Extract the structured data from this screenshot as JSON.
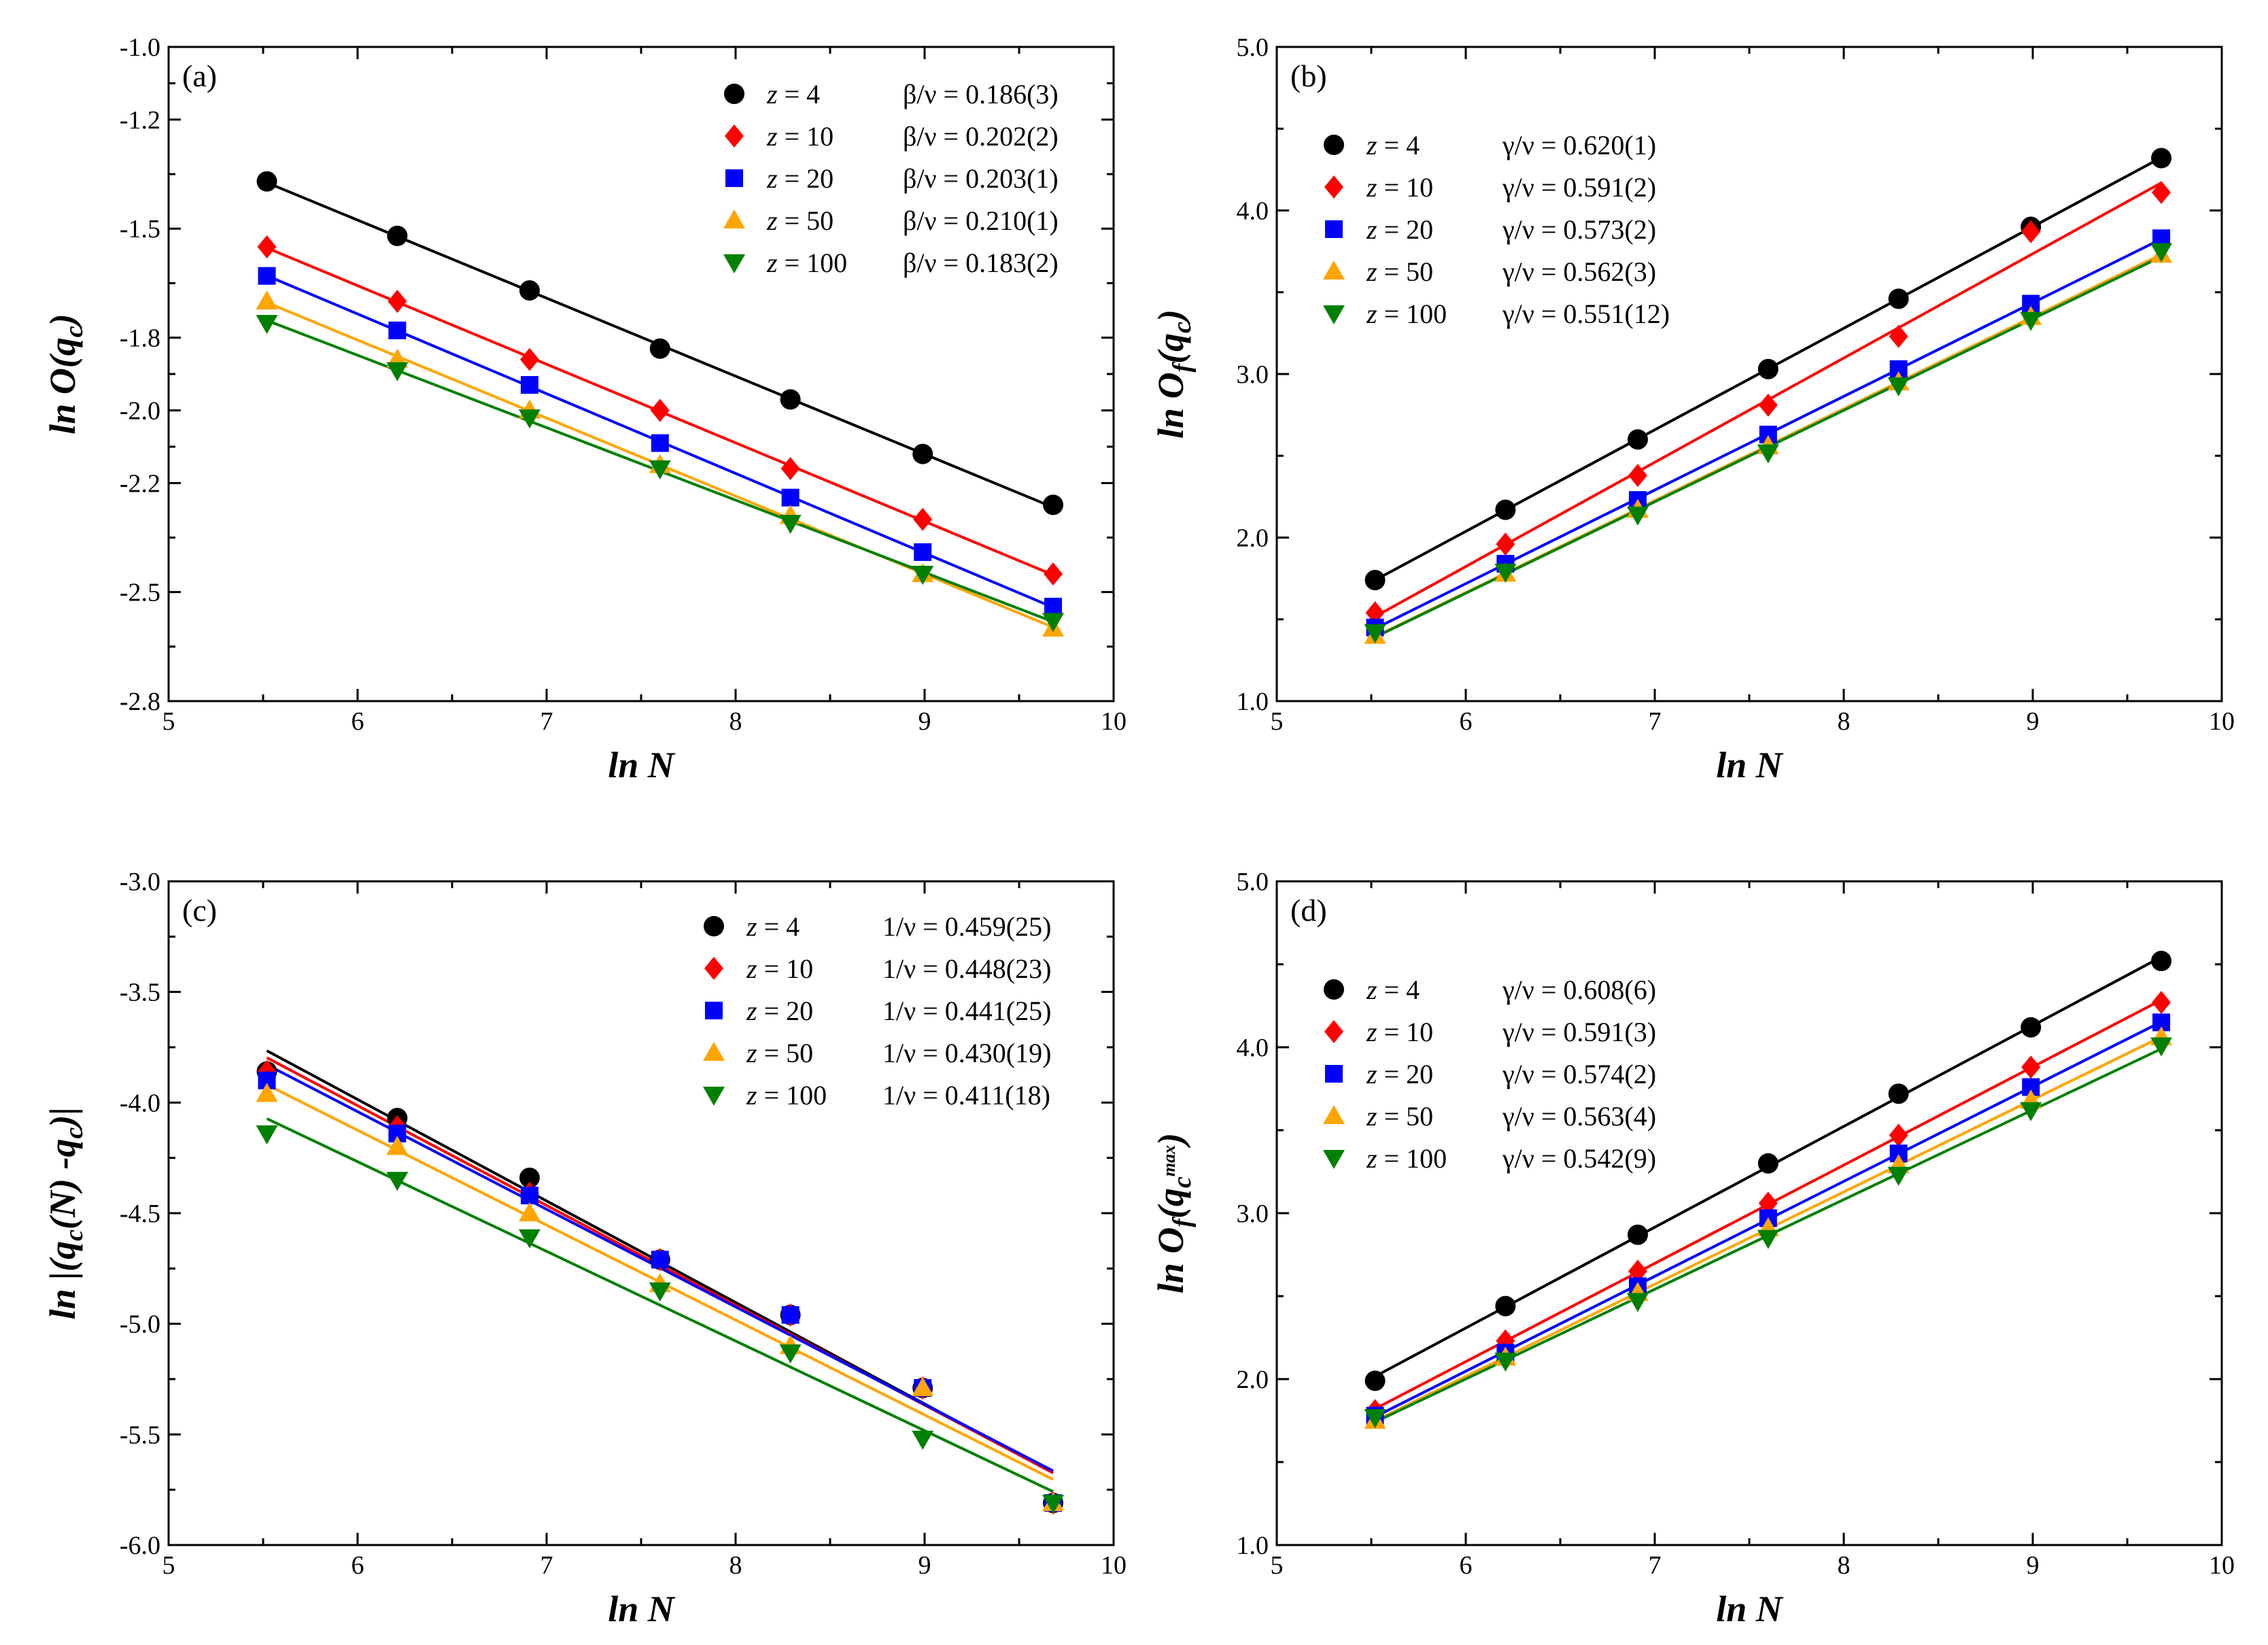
{
  "chart_data": [
    {
      "type": "scatter",
      "panel": "(a)",
      "xlabel": "ln N",
      "ylabel_parts": [
        {
          "t": "ln O(q"
        },
        {
          "t": "c",
          "sub": true
        },
        {
          "t": ")"
        }
      ],
      "xlim": [
        5,
        10
      ],
      "ylim": [
        -2.8,
        -1.0
      ],
      "xticks": [
        5,
        6,
        7,
        8,
        9,
        10
      ],
      "yticks": [
        -2.8,
        -2.5,
        -2.2,
        -2.0,
        -1.8,
        -1.5,
        -1.2,
        -1.0
      ],
      "ytick_labels": [
        "-2.8",
        "-2.5",
        "-2.2",
        "-2.0",
        "-1.8",
        "-1.5",
        "-1.2",
        "-1.0"
      ],
      "x": [
        5.52,
        6.21,
        6.91,
        7.6,
        8.29,
        8.99,
        9.68
      ],
      "series": [
        {
          "z": "4",
          "exponent": "β/ν = 0.186(3)",
          "values": [
            -1.37,
            -1.52,
            -1.67,
            -1.83,
            -1.97,
            -2.12,
            -2.26
          ]
        },
        {
          "z": "10",
          "exponent": "β/ν = 0.202(2)",
          "values": [
            -1.55,
            -1.7,
            -1.86,
            -2.0,
            -2.16,
            -2.3,
            -2.45
          ]
        },
        {
          "z": "20",
          "exponent": "β/ν = 0.203(1)",
          "values": [
            -1.63,
            -1.78,
            -1.93,
            -2.09,
            -2.24,
            -2.39,
            -2.54
          ]
        },
        {
          "z": "50",
          "exponent": "β/ν = 0.210(1)",
          "values": [
            -1.7,
            -1.86,
            -2.0,
            -2.15,
            -2.29,
            -2.45,
            -2.6
          ]
        },
        {
          "z": "100",
          "exponent": "β/ν = 0.183(2)",
          "values": [
            -1.76,
            -1.89,
            -2.02,
            -2.16,
            -2.31,
            -2.45,
            -2.58
          ]
        }
      ]
    },
    {
      "type": "scatter",
      "panel": "(b)",
      "xlabel": "ln N",
      "ylabel_parts": [
        {
          "t": "ln O"
        },
        {
          "t": "f",
          "sub": true
        },
        {
          "t": "(q"
        },
        {
          "t": "c",
          "sub": true
        },
        {
          "t": ")"
        }
      ],
      "xlim": [
        5,
        10
      ],
      "ylim": [
        1.0,
        5.0
      ],
      "xticks": [
        5,
        6,
        7,
        8,
        9,
        10
      ],
      "yticks": [
        1.0,
        2.0,
        3.0,
        4.0,
        5.0
      ],
      "ytick_labels": [
        "1.0",
        "2.0",
        "3.0",
        "4.0",
        "5.0"
      ],
      "x": [
        5.52,
        6.21,
        6.91,
        7.6,
        8.29,
        8.99,
        9.68
      ],
      "series": [
        {
          "z": "4",
          "exponent": "γ/ν = 0.620(1)",
          "values": [
            1.74,
            2.17,
            2.6,
            3.03,
            3.46,
            3.9,
            4.32
          ]
        },
        {
          "z": "10",
          "exponent": "γ/ν = 0.591(2)",
          "values": [
            1.54,
            1.96,
            2.38,
            2.81,
            3.23,
            3.87,
            4.11
          ]
        },
        {
          "z": "20",
          "exponent": "γ/ν = 0.573(2)",
          "values": [
            1.45,
            1.84,
            2.23,
            2.63,
            3.03,
            3.43,
            3.83
          ]
        },
        {
          "z": "50",
          "exponent": "γ/ν = 0.562(3)",
          "values": [
            1.4,
            1.78,
            2.17,
            2.56,
            2.95,
            3.35,
            3.73
          ]
        },
        {
          "z": "100",
          "exponent": "γ/ν = 0.551(12)",
          "values": [
            1.42,
            1.79,
            2.14,
            2.52,
            2.93,
            3.33,
            3.75
          ]
        }
      ]
    },
    {
      "type": "scatter",
      "panel": "(c)",
      "xlabel": "ln N",
      "ylabel_parts": [
        {
          "t": "ln |(q"
        },
        {
          "t": "c",
          "sub": true
        },
        {
          "t": "(N) -q"
        },
        {
          "t": "c",
          "sub": true
        },
        {
          "t": ")|"
        }
      ],
      "xlim": [
        5,
        10
      ],
      "ylim": [
        -6.0,
        -3.0
      ],
      "xticks": [
        5,
        6,
        7,
        8,
        9,
        10
      ],
      "yticks": [
        -6.0,
        -5.5,
        -5.0,
        -4.5,
        -4.0,
        -3.5,
        -3.0
      ],
      "ytick_labels": [
        "-6.0",
        "-5.5",
        "-5.0",
        "-4.5",
        "-4.0",
        "-3.5",
        "-3.0"
      ],
      "x": [
        5.52,
        6.21,
        6.91,
        7.6,
        8.29,
        8.99,
        9.68
      ],
      "series": [
        {
          "z": "4",
          "exponent": "1/ν = 0.459(25)",
          "values": [
            -3.86,
            -4.07,
            -4.34,
            -4.71,
            -4.96,
            -5.29,
            -5.81
          ]
        },
        {
          "z": "10",
          "exponent": "1/ν = 0.448(23)",
          "values": [
            -3.86,
            -4.11,
            -4.41,
            -4.71,
            -4.96,
            -5.29,
            -5.81
          ]
        },
        {
          "z": "20",
          "exponent": "1/ν = 0.441(25)",
          "values": [
            -3.9,
            -4.14,
            -4.42,
            -4.71,
            -4.96,
            -5.29,
            -5.81
          ]
        },
        {
          "z": "50",
          "exponent": "1/ν = 0.430(19)",
          "values": [
            -3.96,
            -4.2,
            -4.5,
            -4.82,
            -5.1,
            -5.29,
            -5.81
          ]
        },
        {
          "z": "100",
          "exponent": "1/ν = 0.411(18)",
          "values": [
            -4.14,
            -4.35,
            -4.61,
            -4.85,
            -5.13,
            -5.52,
            -5.81
          ]
        }
      ]
    },
    {
      "type": "scatter",
      "panel": "(d)",
      "xlabel": "ln N",
      "ylabel_parts": [
        {
          "t": "ln O"
        },
        {
          "t": "f",
          "sub": true
        },
        {
          "t": "(q"
        },
        {
          "t": "c",
          "sub": true
        },
        {
          "t": "max",
          "sup": true
        },
        {
          "t": ")"
        }
      ],
      "xlim": [
        5,
        10
      ],
      "ylim": [
        1.0,
        5.0
      ],
      "xticks": [
        5,
        6,
        7,
        8,
        9,
        10
      ],
      "yticks": [
        1.0,
        2.0,
        3.0,
        4.0,
        5.0
      ],
      "ytick_labels": [
        "1.0",
        "2.0",
        "3.0",
        "4.0",
        "5.0"
      ],
      "x": [
        5.52,
        6.21,
        6.91,
        7.6,
        8.29,
        8.99,
        9.68
      ],
      "series": [
        {
          "z": "4",
          "exponent": "γ/ν = 0.608(6)",
          "values": [
            1.99,
            2.44,
            2.87,
            3.3,
            3.72,
            4.12,
            4.52
          ]
        },
        {
          "z": "10",
          "exponent": "γ/ν = 0.591(3)",
          "values": [
            1.81,
            2.23,
            2.65,
            3.06,
            3.47,
            3.88,
            4.27
          ]
        },
        {
          "z": "20",
          "exponent": "γ/ν = 0.574(2)",
          "values": [
            1.78,
            2.16,
            2.56,
            2.97,
            3.36,
            3.76,
            4.15
          ]
        },
        {
          "z": "50",
          "exponent": "γ/ν = 0.563(4)",
          "values": [
            1.75,
            2.13,
            2.52,
            2.91,
            3.29,
            3.68,
            4.06
          ]
        },
        {
          "z": "100",
          "exponent": "γ/ν = 0.542(9)",
          "values": [
            1.77,
            2.11,
            2.47,
            2.85,
            3.23,
            3.62,
            4.01
          ]
        }
      ]
    }
  ],
  "legend_z_label": "z",
  "legend_equals": " = ",
  "series_style": [
    {
      "marker": "circle",
      "color": "#000000"
    },
    {
      "marker": "diamond",
      "color": "#ff0000"
    },
    {
      "marker": "square",
      "color": "#0000ff"
    },
    {
      "marker": "triangle-up",
      "color": "#ffa500"
    },
    {
      "marker": "triangle-down",
      "color": "#008000"
    }
  ]
}
